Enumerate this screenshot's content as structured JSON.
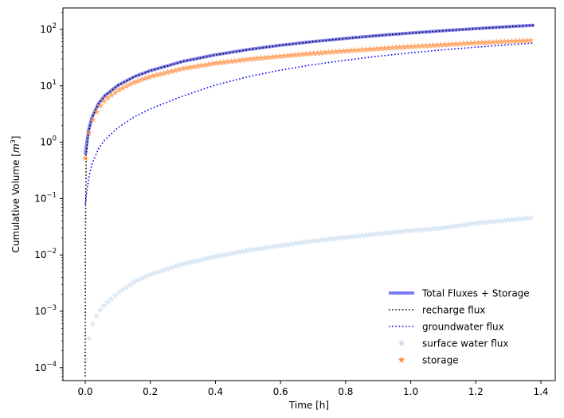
{
  "chart_data": {
    "type": "line",
    "title": "",
    "xlabel": "Time [h]",
    "ylabel": "Cumulative Volume [m^3]",
    "xlim": [
      -0.07,
      1.45
    ],
    "ylim": [
      7e-05,
      240
    ],
    "yscale": "log",
    "xticks": [
      0.0,
      0.2,
      0.4,
      0.6,
      0.8,
      1.0,
      1.2,
      1.4
    ],
    "xtick_labels": [
      "0.0",
      "0.2",
      "0.4",
      "0.6",
      "0.8",
      "1.0",
      "1.2",
      "1.4"
    ],
    "yticks": [
      0.0001,
      0.001,
      0.01,
      0.1,
      1,
      10,
      100
    ],
    "ytick_exponents": [
      "−4",
      "−3",
      "−2",
      "−1",
      "0",
      "1",
      "2"
    ],
    "legend_position": "lower right",
    "grid": false,
    "x": [
      0.0,
      0.01,
      0.02,
      0.04,
      0.06,
      0.1,
      0.15,
      0.2,
      0.3,
      0.4,
      0.5,
      0.6,
      0.7,
      0.8,
      0.9,
      1.0,
      1.1,
      1.2,
      1.3,
      1.38
    ],
    "series": [
      {
        "name": "Total Fluxes + Storage",
        "style": "solid",
        "color": "#7b7bf5",
        "values": [
          0.6,
          1.6,
          2.7,
          4.8,
          6.7,
          10.2,
          14.5,
          18.6,
          27.2,
          35.5,
          44.0,
          52.5,
          61.0,
          69.5,
          78.0,
          86.5,
          95.0,
          103.5,
          112.0,
          119.0
        ]
      },
      {
        "name": "recharge flux",
        "style": "dotted",
        "color": "#000000",
        "values": [
          7e-05,
          1.5,
          2.6,
          4.7,
          6.6,
          10.1,
          14.4,
          18.5,
          27.0,
          35.3,
          43.8,
          52.3,
          60.8,
          69.3,
          77.8,
          86.3,
          94.8,
          103.3,
          111.8,
          118.8
        ]
      },
      {
        "name": "groundwater flux",
        "style": "dotted",
        "color": "#0000ff",
        "values": [
          0.08,
          0.22,
          0.4,
          0.75,
          1.1,
          1.8,
          2.8,
          3.9,
          6.6,
          10.3,
          14.5,
          19.0,
          23.7,
          28.5,
          33.5,
          38.5,
          43.5,
          48.5,
          53.5,
          57.5
        ]
      },
      {
        "name": "surface water flux",
        "style": "star-markers",
        "color": "#c6dbef",
        "values": [
          0.00014,
          0.0003,
          0.00055,
          0.00095,
          0.0013,
          0.0021,
          0.0033,
          0.0045,
          0.0069,
          0.0094,
          0.012,
          0.0147,
          0.0176,
          0.0206,
          0.0237,
          0.0269,
          0.0302,
          0.0365,
          0.0415,
          0.046
        ]
      },
      {
        "name": "storage",
        "style": "star-markers",
        "color": "#fd8d3c",
        "values": [
          0.52,
          1.35,
          2.3,
          4.0,
          5.6,
          8.3,
          11.5,
          14.5,
          20.3,
          25.1,
          29.5,
          33.5,
          37.5,
          41.5,
          45.5,
          49.5,
          53.5,
          57.5,
          61.5,
          64.0
        ]
      }
    ]
  }
}
